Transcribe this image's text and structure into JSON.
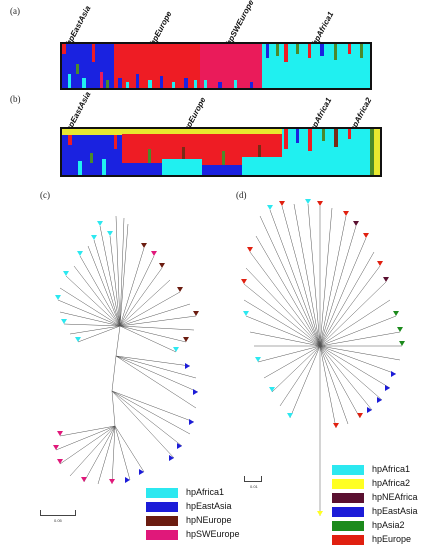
{
  "figure": {
    "panels": [
      {
        "id": "a",
        "letter": "(a)"
      },
      {
        "id": "b",
        "letter": "(b)"
      },
      {
        "id": "c",
        "letter": "(c)"
      },
      {
        "id": "d",
        "letter": "(d)"
      }
    ],
    "structure_a": {
      "populations": [
        "hpEastAsia",
        "hpEurope",
        "hpSWEurope",
        "hpAfrica1"
      ],
      "colors": {
        "blue": "#1a22e0",
        "red": "#ee1c24",
        "pink": "#ea1b5a",
        "cyan": "#20f0f0",
        "green": "#4b8a2a",
        "yellow": "#e8e830",
        "brown": "#7a2a16"
      }
    },
    "structure_b": {
      "populations": [
        "hpEastAsia",
        "hpEurope",
        "hpAfrica1",
        "hpAfrica2"
      ]
    },
    "tree_c_scale": "0.05",
    "tree_d_scale": "0.01",
    "legend_c": [
      {
        "label": "hpAfrica1",
        "color": "#2ce8f0"
      },
      {
        "label": "hpEastAsia",
        "color": "#1c1cd8"
      },
      {
        "label": "hpNEurope",
        "color": "#6b1c10"
      },
      {
        "label": "hpSWEurope",
        "color": "#e0187a"
      }
    ],
    "legend_d": [
      {
        "label": "hpAfrica1",
        "color": "#2ce8f0"
      },
      {
        "label": "hpAfrica2",
        "color": "#ffff22"
      },
      {
        "label": "hpNEAfrica",
        "color": "#5a1030"
      },
      {
        "label": "hpEastAsia",
        "color": "#1c1cd8"
      },
      {
        "label": "hpAsia2",
        "color": "#1c8a1c"
      },
      {
        "label": "hpEurope",
        "color": "#e02010"
      }
    ]
  }
}
